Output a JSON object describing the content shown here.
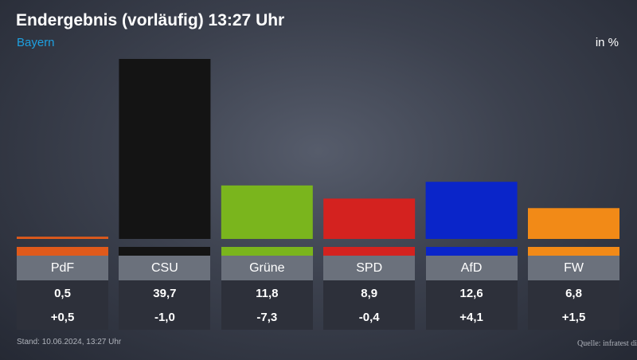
{
  "header": {
    "title": "Endergebnis (vorläufig) 13:27 Uhr",
    "region": "Bayern",
    "unit": "in %"
  },
  "footer": {
    "stand": "Stand: 10.06.2024, 13:27 Uhr",
    "source": "Quelle: infratest di"
  },
  "chart_data": {
    "type": "bar",
    "title": "Endergebnis (vorläufig) 13:27 Uhr",
    "subtitle": "Bayern",
    "ylabel": "in %",
    "categories": [
      "PdF",
      "CSU",
      "Grüne",
      "SPD",
      "AfD",
      "FW"
    ],
    "values": [
      0.5,
      39.7,
      11.8,
      8.9,
      12.6,
      6.8
    ],
    "value_labels": [
      "0,5",
      "39,7",
      "11,8",
      "8,9",
      "12,6",
      "6,8"
    ],
    "changes": [
      "+0,5",
      "-1,0",
      "-7,3",
      "-0,4",
      "+4,1",
      "+1,5"
    ],
    "colors": [
      "#e05a1b",
      "#141414",
      "#7ab51d",
      "#d4221f",
      "#0a25c9",
      "#f28a17"
    ],
    "ylim": [
      0,
      39.7
    ],
    "grid": false,
    "legend": "none"
  }
}
